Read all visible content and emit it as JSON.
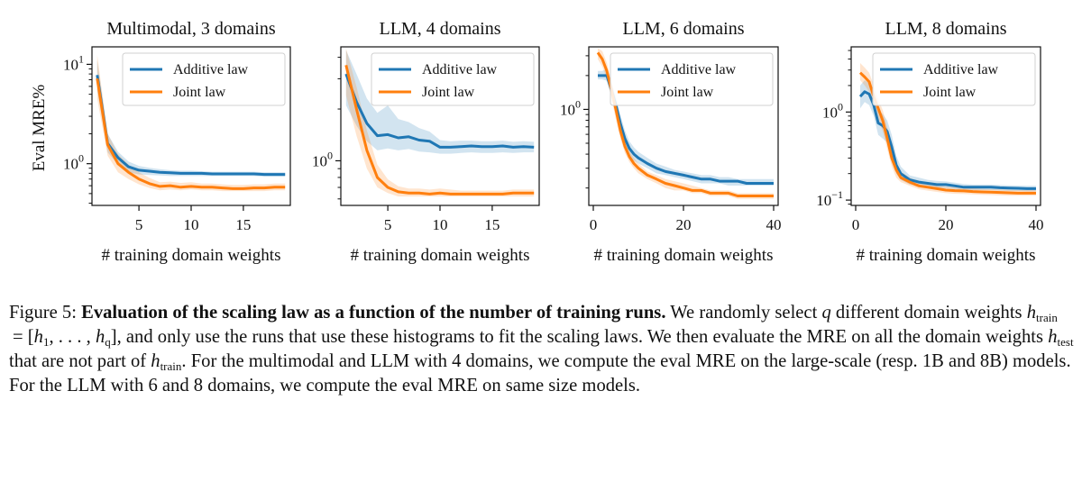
{
  "chart_data": [
    {
      "type": "line",
      "title": "Multimodal, 3 domains",
      "xlabel": "# training domain weights",
      "ylabel": "Eval MRE%",
      "yscale": "log",
      "xlim": [
        0.5,
        19.5
      ],
      "ylim": [
        0.38,
        15
      ],
      "xticks": [
        5,
        10,
        15
      ],
      "xtick_labels": [
        "5",
        "10",
        "15"
      ],
      "yticks": [
        1,
        10
      ],
      "ytick_labels": [
        "10^0",
        "10^1"
      ],
      "legend": "upper right",
      "series": [
        {
          "name": "Additive law",
          "color": "#1f77b4",
          "x": [
            1,
            2,
            3,
            4,
            5,
            6,
            7,
            8,
            9,
            10,
            11,
            12,
            13,
            14,
            15,
            16,
            17,
            18,
            19
          ],
          "y": [
            7.8,
            1.6,
            1.15,
            0.93,
            0.86,
            0.84,
            0.82,
            0.81,
            0.8,
            0.8,
            0.8,
            0.79,
            0.79,
            0.79,
            0.79,
            0.79,
            0.78,
            0.78,
            0.78
          ],
          "lower": [
            5.5,
            1.3,
            0.98,
            0.82,
            0.78,
            0.77,
            0.76,
            0.75,
            0.75,
            0.75,
            0.75,
            0.75,
            0.75,
            0.75,
            0.75,
            0.75,
            0.74,
            0.74,
            0.74
          ],
          "upper": [
            11.0,
            2.0,
            1.32,
            1.05,
            0.95,
            0.91,
            0.88,
            0.86,
            0.85,
            0.85,
            0.84,
            0.83,
            0.83,
            0.83,
            0.83,
            0.83,
            0.82,
            0.82,
            0.82
          ]
        },
        {
          "name": "Joint law",
          "color": "#ff7f0e",
          "x": [
            1,
            2,
            3,
            4,
            5,
            6,
            7,
            8,
            9,
            10,
            11,
            12,
            13,
            14,
            15,
            16,
            17,
            18,
            19
          ],
          "y": [
            7.2,
            1.55,
            1.0,
            0.82,
            0.7,
            0.63,
            0.59,
            0.6,
            0.58,
            0.59,
            0.58,
            0.58,
            0.57,
            0.56,
            0.56,
            0.57,
            0.57,
            0.58,
            0.58
          ],
          "lower": [
            4.5,
            1.2,
            0.82,
            0.7,
            0.62,
            0.57,
            0.54,
            0.55,
            0.54,
            0.55,
            0.54,
            0.54,
            0.53,
            0.53,
            0.53,
            0.53,
            0.53,
            0.54,
            0.54
          ],
          "upper": [
            12.5,
            2.0,
            1.25,
            0.98,
            0.82,
            0.72,
            0.65,
            0.66,
            0.64,
            0.65,
            0.63,
            0.63,
            0.62,
            0.61,
            0.61,
            0.62,
            0.62,
            0.63,
            0.63
          ]
        }
      ]
    },
    {
      "type": "line",
      "title": "LLM, 4 domains",
      "xlabel": "# training domain weights",
      "ylabel": "",
      "yscale": "log",
      "xlim": [
        0.5,
        19.5
      ],
      "ylim": [
        0.55,
        4.6
      ],
      "xticks": [
        5,
        10,
        15
      ],
      "xtick_labels": [
        "5",
        "10",
        "15"
      ],
      "yticks": [
        1
      ],
      "ytick_labels": [
        "10^0"
      ],
      "legend": "upper right",
      "series": [
        {
          "name": "Additive law",
          "color": "#1f77b4",
          "x": [
            1,
            2,
            3,
            4,
            5,
            6,
            7,
            8,
            9,
            10,
            11,
            12,
            13,
            14,
            15,
            16,
            17,
            18,
            19
          ],
          "y": [
            3.2,
            2.2,
            1.65,
            1.4,
            1.42,
            1.36,
            1.38,
            1.32,
            1.3,
            1.2,
            1.2,
            1.21,
            1.22,
            1.21,
            1.21,
            1.22,
            1.2,
            1.21,
            1.2
          ],
          "lower": [
            2.1,
            1.6,
            1.3,
            1.15,
            1.18,
            1.15,
            1.17,
            1.13,
            1.12,
            1.1,
            1.1,
            1.11,
            1.12,
            1.11,
            1.11,
            1.12,
            1.11,
            1.12,
            1.12
          ],
          "upper": [
            4.4,
            3.2,
            2.3,
            1.9,
            2.1,
            1.75,
            1.68,
            1.55,
            1.48,
            1.32,
            1.3,
            1.31,
            1.31,
            1.3,
            1.3,
            1.31,
            1.29,
            1.3,
            1.29
          ]
        },
        {
          "name": "Joint law",
          "color": "#ff7f0e",
          "x": [
            1,
            2,
            3,
            4,
            5,
            6,
            7,
            8,
            9,
            10,
            11,
            12,
            13,
            14,
            15,
            16,
            17,
            18,
            19
          ],
          "y": [
            3.6,
            2.0,
            1.15,
            0.8,
            0.7,
            0.66,
            0.65,
            0.65,
            0.64,
            0.65,
            0.64,
            0.64,
            0.64,
            0.64,
            0.64,
            0.64,
            0.65,
            0.65,
            0.65
          ],
          "lower": [
            2.4,
            1.4,
            0.9,
            0.7,
            0.65,
            0.62,
            0.62,
            0.62,
            0.62,
            0.62,
            0.62,
            0.62,
            0.62,
            0.62,
            0.62,
            0.62,
            0.62,
            0.62,
            0.62
          ],
          "upper": [
            4.5,
            2.7,
            1.5,
            0.95,
            0.78,
            0.71,
            0.69,
            0.69,
            0.68,
            0.69,
            0.68,
            0.67,
            0.67,
            0.67,
            0.67,
            0.67,
            0.68,
            0.68,
            0.68
          ]
        }
      ]
    },
    {
      "type": "line",
      "title": "LLM, 6 domains",
      "xlabel": "# training domain weights",
      "ylabel": "",
      "yscale": "log",
      "xlim": [
        -1,
        41
      ],
      "ylim": [
        0.14,
        3.6
      ],
      "xticks": [
        0,
        20,
        40
      ],
      "xtick_labels": [
        "0",
        "20",
        "40"
      ],
      "yticks": [
        1
      ],
      "ytick_labels": [
        "10^0"
      ],
      "legend": "upper right",
      "series": [
        {
          "name": "Additive law",
          "color": "#1f77b4",
          "x": [
            1,
            2,
            3,
            4,
            5,
            6,
            7,
            8,
            9,
            10,
            12,
            14,
            16,
            18,
            20,
            22,
            24,
            26,
            28,
            30,
            32,
            34,
            36,
            38,
            40
          ],
          "y": [
            2.0,
            2.0,
            2.0,
            1.5,
            1.1,
            0.75,
            0.55,
            0.45,
            0.4,
            0.37,
            0.33,
            0.3,
            0.28,
            0.27,
            0.26,
            0.25,
            0.24,
            0.24,
            0.23,
            0.23,
            0.23,
            0.22,
            0.22,
            0.22,
            0.22
          ],
          "lower": [
            1.85,
            1.85,
            1.8,
            1.3,
            0.92,
            0.63,
            0.47,
            0.39,
            0.35,
            0.33,
            0.3,
            0.27,
            0.26,
            0.25,
            0.24,
            0.23,
            0.22,
            0.22,
            0.22,
            0.21,
            0.21,
            0.21,
            0.21,
            0.21,
            0.21
          ],
          "upper": [
            2.2,
            2.2,
            2.3,
            1.75,
            1.3,
            0.9,
            0.65,
            0.52,
            0.46,
            0.42,
            0.37,
            0.33,
            0.31,
            0.29,
            0.28,
            0.27,
            0.26,
            0.26,
            0.25,
            0.25,
            0.24,
            0.24,
            0.24,
            0.24,
            0.24
          ]
        },
        {
          "name": "Joint law",
          "color": "#ff7f0e",
          "x": [
            1,
            2,
            3,
            4,
            5,
            6,
            7,
            8,
            9,
            10,
            12,
            14,
            16,
            18,
            20,
            22,
            24,
            26,
            28,
            30,
            32,
            34,
            36,
            38,
            40
          ],
          "y": [
            3.2,
            2.8,
            2.2,
            1.5,
            1.0,
            0.65,
            0.47,
            0.38,
            0.33,
            0.3,
            0.26,
            0.24,
            0.22,
            0.21,
            0.2,
            0.19,
            0.19,
            0.18,
            0.18,
            0.18,
            0.17,
            0.17,
            0.17,
            0.17,
            0.17
          ],
          "lower": [
            2.8,
            2.4,
            1.9,
            1.25,
            0.82,
            0.55,
            0.41,
            0.34,
            0.3,
            0.27,
            0.24,
            0.22,
            0.2,
            0.19,
            0.19,
            0.18,
            0.18,
            0.17,
            0.17,
            0.17,
            0.16,
            0.16,
            0.16,
            0.16,
            0.16
          ],
          "upper": [
            3.5,
            3.3,
            2.6,
            1.8,
            1.2,
            0.78,
            0.55,
            0.43,
            0.37,
            0.33,
            0.28,
            0.26,
            0.24,
            0.23,
            0.22,
            0.21,
            0.2,
            0.19,
            0.19,
            0.19,
            0.18,
            0.18,
            0.18,
            0.18,
            0.18
          ]
        }
      ]
    },
    {
      "type": "line",
      "title": "LLM, 8 domains",
      "xlabel": "# training domain weights",
      "ylabel": "",
      "yscale": "log",
      "xlim": [
        -1,
        41
      ],
      "ylim": [
        0.087,
        5.5
      ],
      "xticks": [
        0,
        20,
        40
      ],
      "xtick_labels": [
        "0",
        "20",
        "40"
      ],
      "yticks": [
        0.1,
        1
      ],
      "ytick_labels": [
        "10^-1",
        "10^0"
      ],
      "legend": "upper right",
      "series": [
        {
          "name": "Additive law",
          "color": "#1f77b4",
          "x": [
            1,
            2,
            3,
            4,
            5,
            6,
            7,
            8,
            9,
            10,
            12,
            14,
            16,
            18,
            20,
            22,
            24,
            26,
            28,
            30,
            32,
            34,
            36,
            38,
            40
          ],
          "y": [
            1.5,
            1.7,
            1.6,
            1.2,
            0.75,
            0.7,
            0.6,
            0.4,
            0.25,
            0.2,
            0.17,
            0.16,
            0.155,
            0.15,
            0.15,
            0.145,
            0.14,
            0.14,
            0.14,
            0.14,
            0.138,
            0.137,
            0.136,
            0.135,
            0.135
          ],
          "lower": [
            1.1,
            1.3,
            1.2,
            0.9,
            0.55,
            0.5,
            0.45,
            0.3,
            0.2,
            0.17,
            0.15,
            0.145,
            0.14,
            0.138,
            0.137,
            0.133,
            0.13,
            0.13,
            0.13,
            0.13,
            0.128,
            0.127,
            0.127,
            0.126,
            0.126
          ],
          "upper": [
            2.0,
            2.3,
            2.1,
            1.6,
            1.05,
            0.95,
            0.8,
            0.55,
            0.32,
            0.24,
            0.19,
            0.18,
            0.17,
            0.165,
            0.163,
            0.158,
            0.152,
            0.15,
            0.15,
            0.15,
            0.148,
            0.147,
            0.146,
            0.145,
            0.145
          ]
        },
        {
          "name": "Joint law",
          "color": "#ff7f0e",
          "x": [
            1,
            2,
            3,
            4,
            5,
            6,
            7,
            8,
            9,
            10,
            12,
            14,
            16,
            18,
            20,
            22,
            24,
            26,
            28,
            30,
            32,
            34,
            36,
            38,
            40
          ],
          "y": [
            2.8,
            2.5,
            2.2,
            1.5,
            1.1,
            0.8,
            0.5,
            0.3,
            0.22,
            0.18,
            0.16,
            0.145,
            0.14,
            0.135,
            0.13,
            0.128,
            0.127,
            0.125,
            0.124,
            0.123,
            0.122,
            0.121,
            0.12,
            0.12,
            0.12
          ],
          "lower": [
            2.3,
            2.0,
            1.7,
            1.15,
            0.85,
            0.6,
            0.38,
            0.24,
            0.18,
            0.16,
            0.145,
            0.133,
            0.128,
            0.124,
            0.12,
            0.118,
            0.117,
            0.116,
            0.115,
            0.114,
            0.113,
            0.112,
            0.112,
            0.112,
            0.112
          ],
          "upper": [
            3.6,
            3.2,
            2.8,
            2.0,
            1.4,
            1.05,
            0.68,
            0.38,
            0.27,
            0.21,
            0.18,
            0.16,
            0.152,
            0.147,
            0.142,
            0.139,
            0.138,
            0.136,
            0.134,
            0.133,
            0.132,
            0.131,
            0.13,
            0.13,
            0.13
          ]
        }
      ]
    }
  ],
  "caption": {
    "prefix": "Figure 5:",
    "title": "Evaluation of the scaling law as a function of the number of training runs.",
    "text1": "We randomly select",
    "q": "q",
    "text2": "different domain weights",
    "h": "h",
    "sub_train": "train",
    "equals": "=",
    "set_open": "[",
    "h1": "h",
    "sub_1": "1",
    "dots": ", . . . ,",
    "hq": "h",
    "sub_q": "q",
    "set_close": "],",
    "text3": "and only use the runs that use these histograms to fit the scaling laws. We then evaluate the MRE on all the domain weights",
    "sub_test": "test",
    "text4": "that are not part of",
    "text5": ". For the multimodal and LLM with 4 domains, we compute the eval MRE on the large-scale (resp. 1B and 8B) models. For the LLM with 6 and 8 domains, we compute the eval MRE on same size models."
  }
}
